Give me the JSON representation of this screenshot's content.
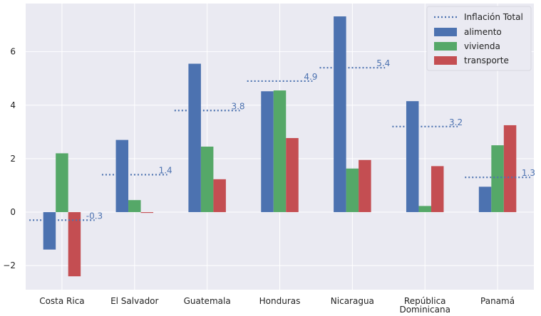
{
  "chart_data": {
    "type": "bar",
    "categories": [
      "Costa Rica",
      "El Salvador",
      "Guatemala",
      "Honduras",
      "Nicaragua",
      "República Dominicana",
      "Panamá"
    ],
    "category_lines": [
      [
        "Costa Rica"
      ],
      [
        "El Salvador"
      ],
      [
        "Guatemala"
      ],
      [
        "Honduras"
      ],
      [
        "Nicaragua"
      ],
      [
        "República",
        "Dominicana"
      ],
      [
        "Panamá"
      ]
    ],
    "series": [
      {
        "name": "alimento",
        "color": "#4c72b0",
        "values": [
          -1.4,
          2.7,
          5.55,
          4.52,
          7.32,
          4.15,
          0.95
        ]
      },
      {
        "name": "vivienda",
        "color": "#55a868",
        "values": [
          2.2,
          0.45,
          2.45,
          4.55,
          1.63,
          0.23,
          2.5
        ]
      },
      {
        "name": "transporte",
        "color": "#c44e52",
        "values": [
          -2.4,
          -0.03,
          1.23,
          2.77,
          1.95,
          1.72,
          3.25
        ]
      }
    ],
    "inflation": {
      "name": "Inflación Total",
      "color": "#4c72b0",
      "values": [
        -0.3,
        1.4,
        3.8,
        4.9,
        5.4,
        3.2,
        1.3
      ],
      "labels": [
        "-0.3",
        "1.4",
        "3.8",
        "4.9",
        "5.4",
        "3.2",
        "1.3"
      ]
    },
    "legend_order": [
      "Inflación Total",
      "alimento",
      "vivienda",
      "transporte"
    ],
    "ylim": [
      -2.9,
      7.8
    ],
    "yticks": [
      -2,
      0,
      2,
      4,
      6
    ],
    "ytick_labels": [
      "−2",
      "0",
      "2",
      "4",
      "6"
    ],
    "grid": true,
    "legend_position": "top-right"
  }
}
